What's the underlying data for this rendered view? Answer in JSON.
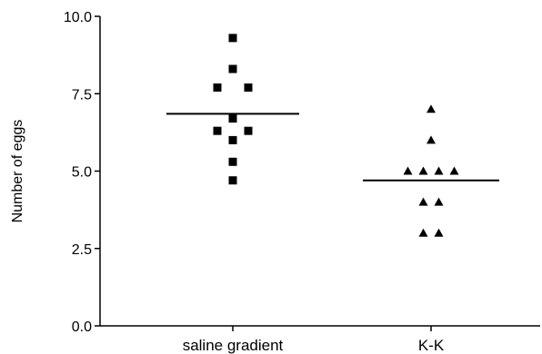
{
  "chart_data": {
    "type": "scatter",
    "title": "",
    "xlabel": "",
    "ylabel": "Number of eggs",
    "ylim": [
      0,
      10
    ],
    "yticks": [
      "0.0",
      "2.5",
      "5.0",
      "7.5",
      "10.0"
    ],
    "grid": false,
    "legend": "none",
    "categories": [
      "saline gradient",
      "K-K"
    ],
    "series": [
      {
        "category": "saline gradient",
        "marker": "square",
        "color": "#000000",
        "mean": 6.85,
        "points": [
          {
            "offset": 0,
            "y": 9.3
          },
          {
            "offset": 0,
            "y": 8.3
          },
          {
            "offset": -1,
            "y": 7.7
          },
          {
            "offset": 1,
            "y": 7.7
          },
          {
            "offset": 0,
            "y": 6.7
          },
          {
            "offset": -1,
            "y": 6.3
          },
          {
            "offset": 1,
            "y": 6.3
          },
          {
            "offset": 0,
            "y": 6.0
          },
          {
            "offset": 0,
            "y": 5.3
          },
          {
            "offset": 0,
            "y": 4.7
          }
        ]
      },
      {
        "category": "K-K",
        "marker": "triangle",
        "color": "#000000",
        "mean": 4.7,
        "points": [
          {
            "offset": 0,
            "y": 7.0
          },
          {
            "offset": 0,
            "y": 6.0
          },
          {
            "offset": -1.5,
            "y": 5.0
          },
          {
            "offset": -0.5,
            "y": 5.0
          },
          {
            "offset": 0.5,
            "y": 5.0
          },
          {
            "offset": 1.5,
            "y": 5.0
          },
          {
            "offset": -0.5,
            "y": 4.0
          },
          {
            "offset": 0.5,
            "y": 4.0
          },
          {
            "offset": -0.5,
            "y": 3.0
          },
          {
            "offset": 0.5,
            "y": 3.0
          }
        ]
      }
    ]
  }
}
